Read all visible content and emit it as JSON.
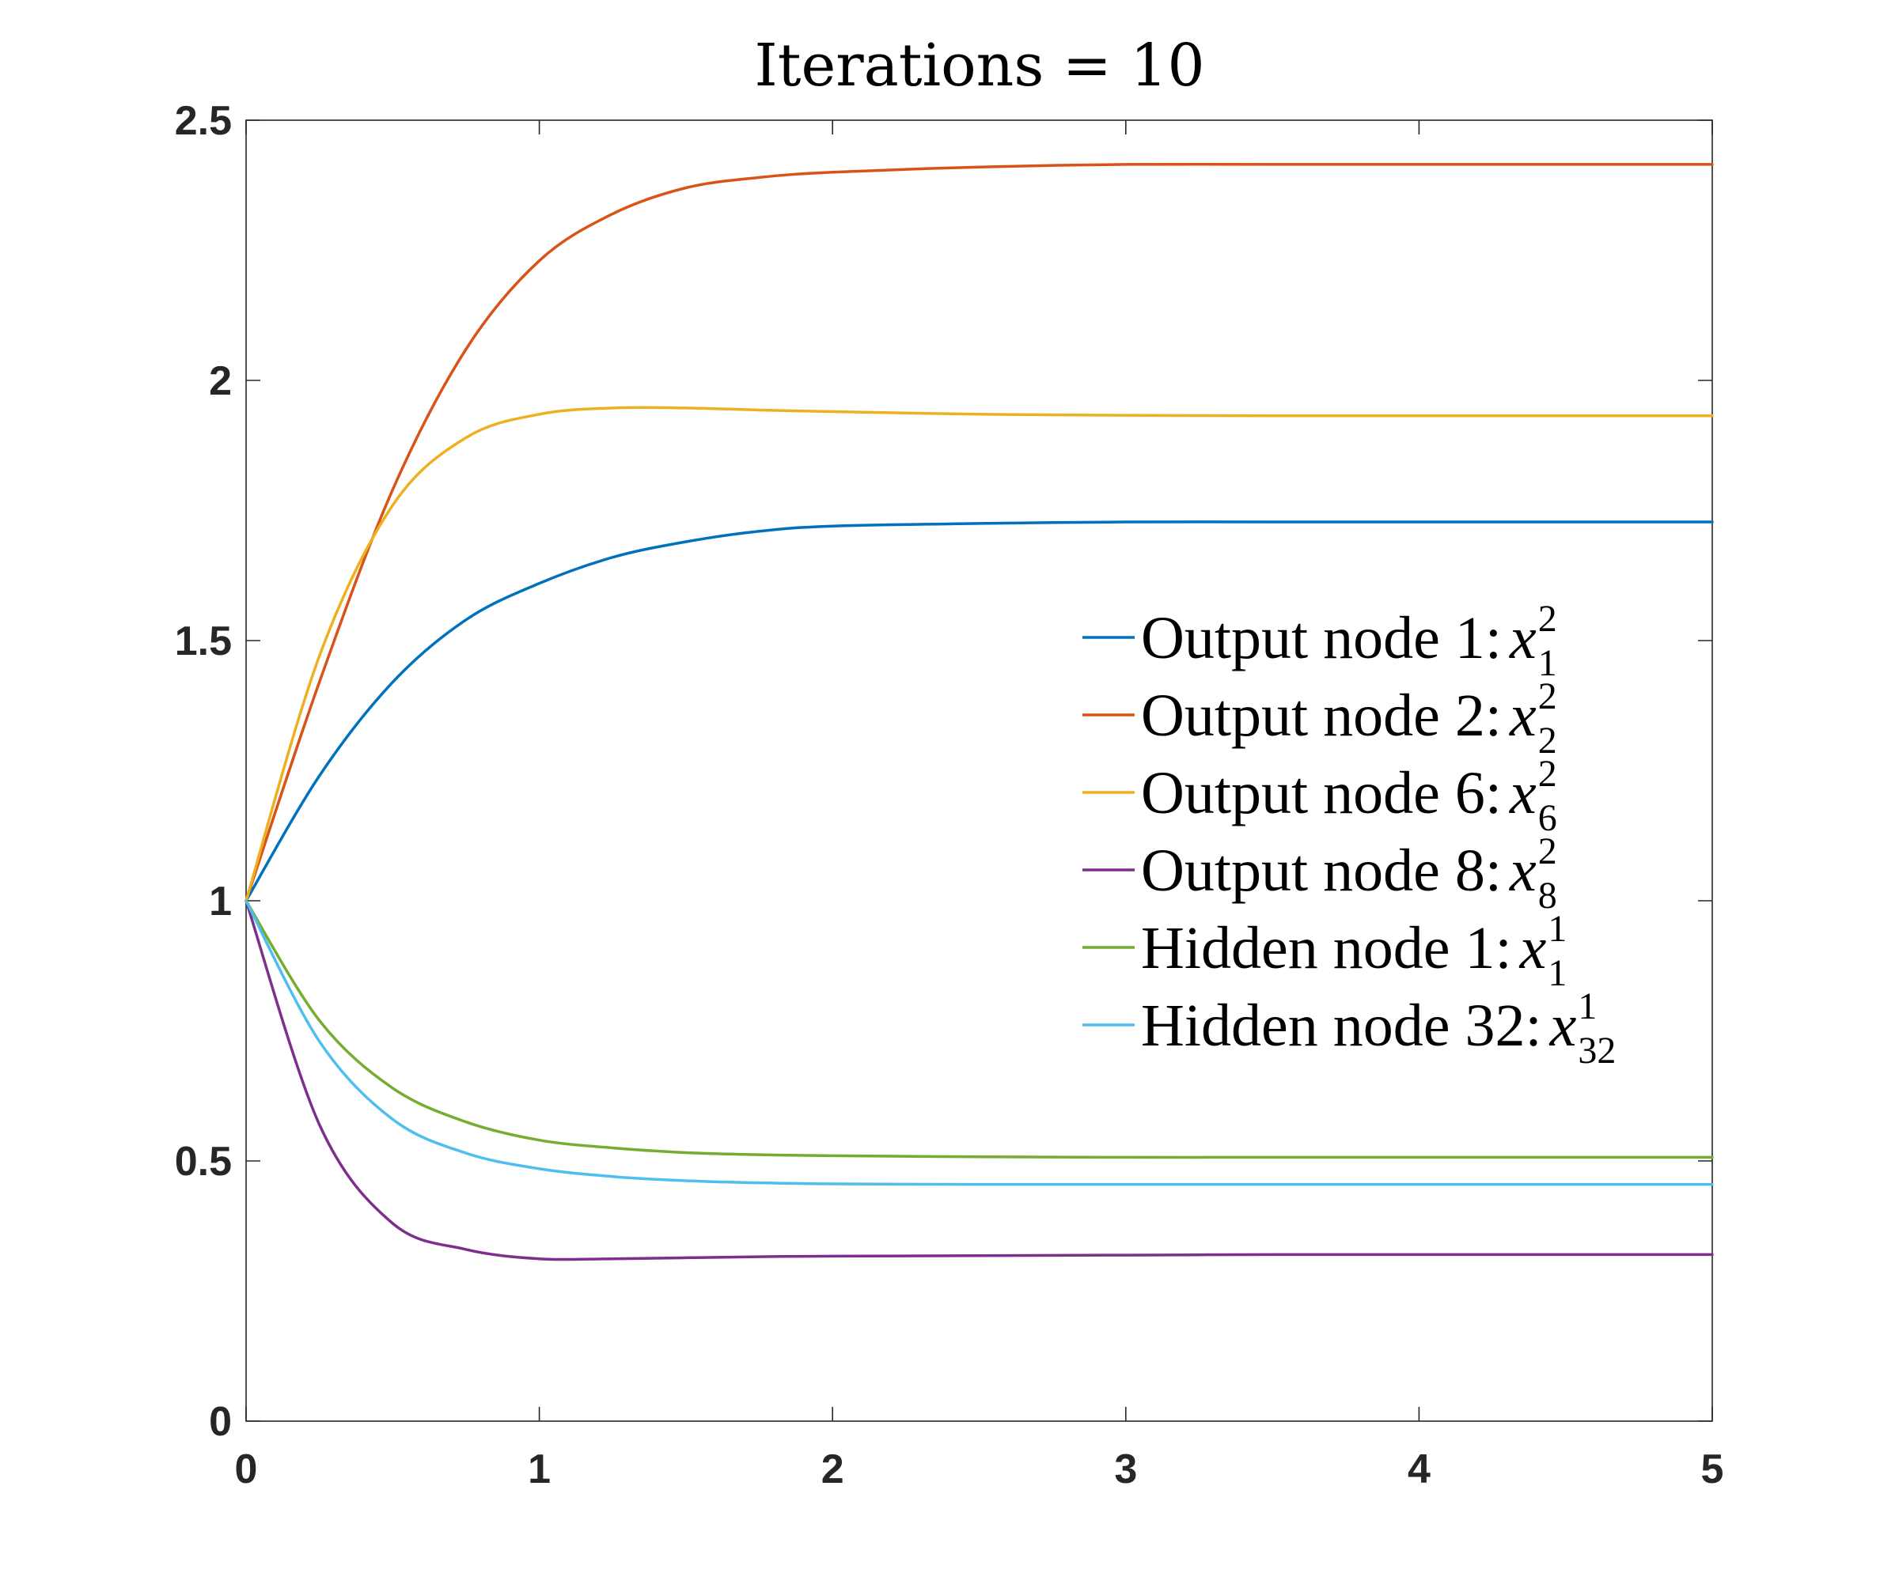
{
  "chart_data": {
    "type": "line",
    "title": "Iterations = 10",
    "xlabel": "",
    "ylabel": "",
    "xlim": [
      0,
      5
    ],
    "ylim": [
      0,
      2.5
    ],
    "xticks": [
      0,
      1,
      2,
      3,
      4,
      5
    ],
    "yticks": [
      0,
      0.5,
      1,
      1.5,
      2,
      2.5
    ],
    "xtick_labels": [
      "0",
      "1",
      "2",
      "3",
      "4",
      "5"
    ],
    "ytick_labels": [
      "0",
      "0.5",
      "1",
      "1.5",
      "2",
      "2.5"
    ],
    "grid": false,
    "legend_position": "right",
    "x": [
      0,
      0.25,
      0.5,
      0.75,
      1,
      1.25,
      1.5,
      1.75,
      2,
      2.5,
      3,
      3.5,
      4,
      4.5,
      5
    ],
    "series": [
      {
        "name": "Output node 1: x_1^2",
        "legend_label": "Output node 1: ",
        "var": "x",
        "sup": "2",
        "sub": "1",
        "color": "#0072BD",
        "values": [
          1.0,
          1.24,
          1.42,
          1.54,
          1.61,
          1.66,
          1.69,
          1.71,
          1.72,
          1.725,
          1.728,
          1.728,
          1.728,
          1.728,
          1.728
        ]
      },
      {
        "name": "Output node 2: x_2^2",
        "legend_label": "Output node 2: ",
        "var": "x",
        "sup": "2",
        "sub": "2",
        "color": "#D95319",
        "values": [
          1.0,
          1.42,
          1.79,
          2.06,
          2.23,
          2.32,
          2.37,
          2.39,
          2.4,
          2.41,
          2.415,
          2.415,
          2.415,
          2.415,
          2.415
        ]
      },
      {
        "name": "Output node 6: x_6^2",
        "legend_label": "Output node 6: ",
        "var": "x",
        "sup": "2",
        "sub": "6",
        "color": "#EDB120",
        "values": [
          1.0,
          1.47,
          1.76,
          1.89,
          1.935,
          1.947,
          1.947,
          1.943,
          1.94,
          1.935,
          1.933,
          1.932,
          1.932,
          1.932,
          1.932
        ]
      },
      {
        "name": "Output node 8: x_8^2",
        "legend_label": "Output node 8: ",
        "var": "x",
        "sup": "2",
        "sub": "8",
        "color": "#7E2F8E",
        "values": [
          1.0,
          0.57,
          0.38,
          0.33,
          0.312,
          0.312,
          0.314,
          0.316,
          0.317,
          0.318,
          0.319,
          0.32,
          0.32,
          0.32,
          0.32
        ]
      },
      {
        "name": "Hidden node 1: x_1^1",
        "legend_label": "Hidden node 1: ",
        "var": "x",
        "sup": "1",
        "sub": "1",
        "color": "#77AC30",
        "values": [
          1.0,
          0.77,
          0.64,
          0.575,
          0.54,
          0.525,
          0.516,
          0.512,
          0.51,
          0.508,
          0.507,
          0.507,
          0.507,
          0.507,
          0.507
        ]
      },
      {
        "name": "Hidden node 32: x_32^1",
        "legend_label": "Hidden node 32: ",
        "var": "x",
        "sup": "1",
        "sub": "32",
        "color": "#4DBEEE",
        "values": [
          1.0,
          0.73,
          0.58,
          0.515,
          0.485,
          0.47,
          0.462,
          0.458,
          0.456,
          0.455,
          0.455,
          0.455,
          0.455,
          0.455,
          0.455
        ]
      }
    ]
  }
}
